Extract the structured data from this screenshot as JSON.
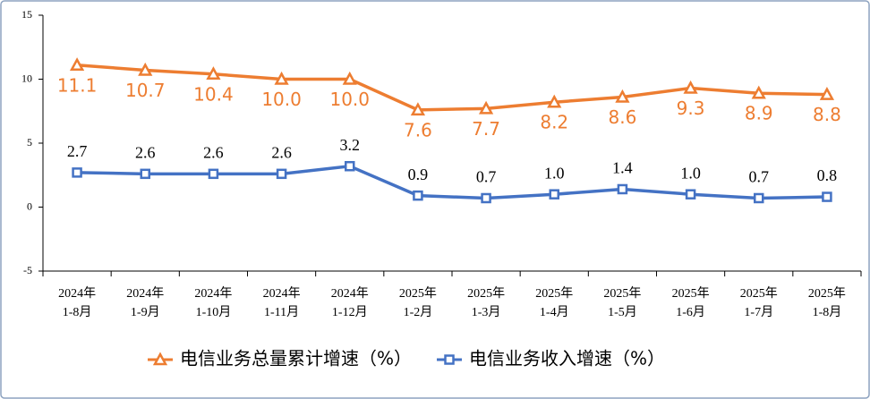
{
  "chart_data": {
    "type": "line",
    "categories": [
      "2024年\n1-8月",
      "2024年\n1-9月",
      "2024年\n1-10月",
      "2024年\n1-11月",
      "2024年\n1-12月",
      "2025年\n1-2月",
      "2025年\n1-3月",
      "2025年\n1-4月",
      "2025年\n1-5月",
      "2025年\n1-6月",
      "2025年\n1-7月",
      "2025年\n1-8月"
    ],
    "series": [
      {
        "name": "电信业务总量累计增速（%）",
        "color": "#ed7d31",
        "marker": "triangle",
        "values": [
          11.1,
          10.7,
          10.4,
          10,
          10,
          7.6,
          7.7,
          8.2,
          8.6,
          9.3,
          8.9,
          8.8
        ],
        "value_labels": [
          "11.1",
          "10.7",
          "10.4",
          "10.0",
          "10.0",
          "7.6",
          "7.7",
          "8.2",
          "8.6",
          "9.3",
          "8.9",
          "8.8"
        ]
      },
      {
        "name": "电信业务收入增速（%）",
        "color": "#4472c4",
        "marker": "square",
        "values": [
          2.7,
          2.6,
          2.6,
          2.6,
          3.2,
          0.9,
          0.7,
          1,
          1.4,
          1,
          0.7,
          0.8
        ],
        "value_labels": [
          "2.7",
          "2.6",
          "2.6",
          "2.6",
          "3.2",
          "0.9",
          "0.7",
          "1.0",
          "1.4",
          "1.0",
          "0.7",
          "0.8"
        ]
      }
    ],
    "ylim": [
      -5,
      15
    ],
    "yticks": [
      -5,
      0,
      5,
      10,
      15
    ],
    "grid": false,
    "legend": "bottom"
  }
}
